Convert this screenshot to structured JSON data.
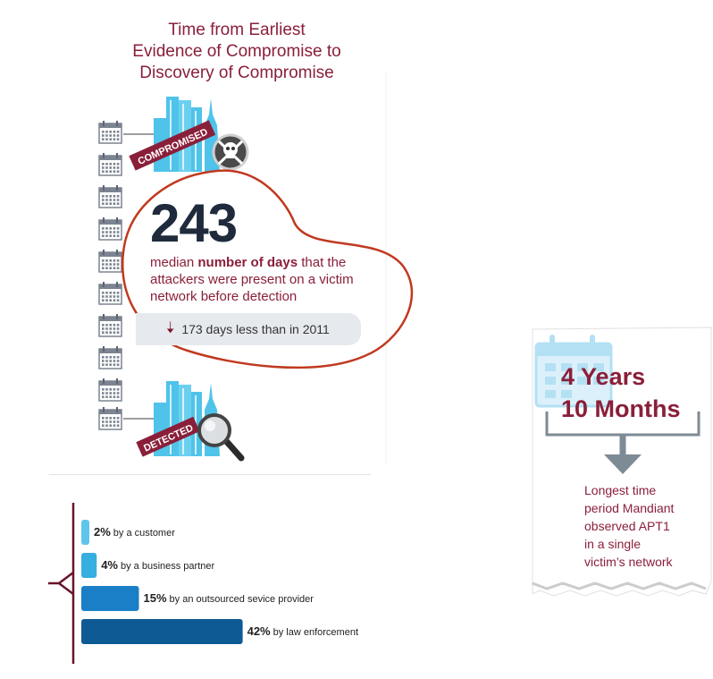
{
  "title": {
    "lines": [
      "Time from Earliest",
      "Evidence of Compromise to",
      "Discovery of Compromise"
    ]
  },
  "badges": {
    "compromised": "COMPROMISED",
    "detected": "DETECTED"
  },
  "median": {
    "number": "243",
    "text_before": "median ",
    "text_bold": "number of days",
    "text_after": " that the attackers were present on a victim network before detection"
  },
  "comparison": {
    "text": "173 days less than in 2011"
  },
  "icons": [
    "calendar-icon",
    "building-icon",
    "skull-crossbones-icon",
    "magnifier-icon",
    "arrow-down-icon"
  ],
  "colors": {
    "maroon": "#8a1f3a",
    "dark_navy": "#1f2b3c",
    "light_blue": "#4fc3ea",
    "mid_blue": "#1a80c8",
    "dark_blue": "#0e5b96"
  },
  "discovery": [
    {
      "percent": 2,
      "pct_label": "2%",
      "label": "by a customer",
      "color": "#5ec5ec"
    },
    {
      "percent": 4,
      "pct_label": "4%",
      "label": "by a business partner",
      "color": "#35aee0"
    },
    {
      "percent": 15,
      "pct_label": "15%",
      "label": "by an outsourced sevice provider",
      "color": "#1a7fc6"
    },
    {
      "percent": 42,
      "pct_label": "42%",
      "label": "by law enforcement",
      "color": "#0d5a95"
    }
  ],
  "card": {
    "title_line1": "4 Years",
    "title_line2": "10 Months",
    "desc_lines": [
      "Longest time",
      "period Mandiant",
      "observed APT1",
      "in a single",
      "victim’s network"
    ]
  }
}
